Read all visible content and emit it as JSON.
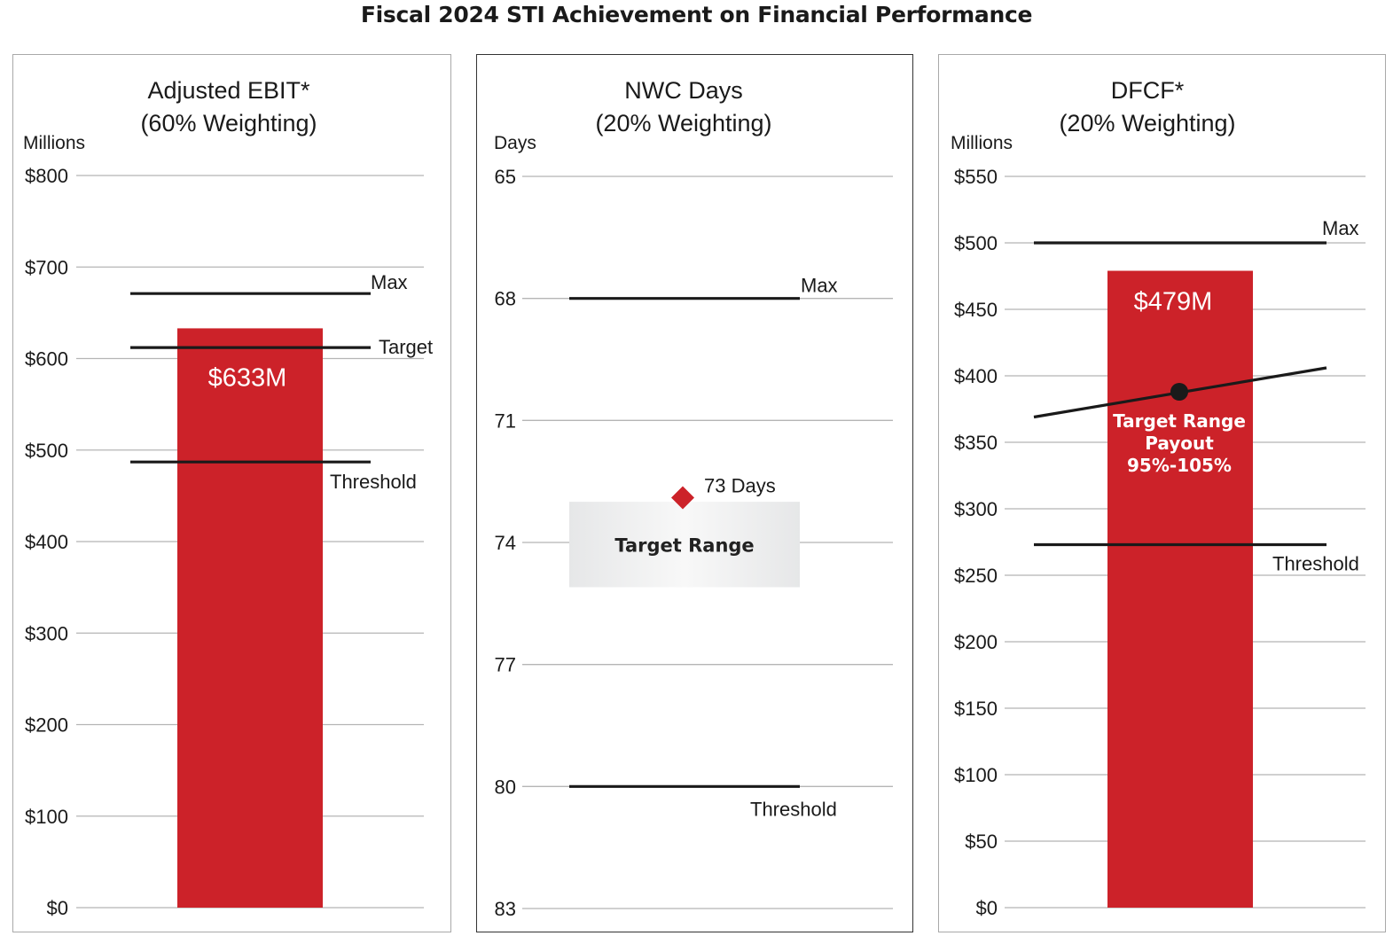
{
  "title": "Fiscal 2024 STI Achievement on Financial Performance",
  "colors": {
    "accent": "#cc2229",
    "gridline": "#b5b5b5",
    "reference_line": "#1a1a1a",
    "text": "#1a1a1a",
    "target_range_fill": "#e6e7e8"
  },
  "chart_data": [
    {
      "type": "bar",
      "title": "Adjusted EBIT*",
      "subtitle": "(60% Weighting)",
      "ylabel": "Millions",
      "ylim": [
        0,
        800
      ],
      "y_ticks": [
        "$0",
        "$100",
        "$200",
        "$300",
        "$400",
        "$500",
        "$600",
        "$700",
        "$800"
      ],
      "values": [
        633
      ],
      "bar_label": "$633M",
      "reference_lines": [
        {
          "label": "Max",
          "value": 671
        },
        {
          "label": "Target",
          "value": 612
        },
        {
          "label": "Threshold",
          "value": 487
        }
      ]
    },
    {
      "type": "scatter",
      "title": "NWC Days",
      "subtitle": "(20% Weighting)",
      "ylabel": "Days",
      "ylim": [
        65,
        83
      ],
      "y_inverted": true,
      "y_ticks": [
        "65",
        "68",
        "71",
        "74",
        "77",
        "80",
        "83"
      ],
      "point": {
        "value": 72.9,
        "label": "73 Days"
      },
      "target_range": {
        "label": "Target Range",
        "from": 73,
        "to": 75.1
      },
      "reference_lines": [
        {
          "label": "Max",
          "value": 68
        },
        {
          "label": "Threshold",
          "value": 80
        }
      ]
    },
    {
      "type": "bar",
      "title": "DFCF*",
      "subtitle": "(20% Weighting)",
      "ylabel": "Millions",
      "ylim": [
        0,
        550
      ],
      "y_ticks": [
        "$0",
        "$50",
        "$100",
        "$150",
        "$200",
        "$250",
        "$300",
        "$350",
        "$400",
        "$450",
        "$500",
        "$550"
      ],
      "values": [
        479
      ],
      "bar_label": "$479M",
      "reference_lines": [
        {
          "label": "Max",
          "value": 500
        },
        {
          "label": "Threshold",
          "value": 273
        }
      ],
      "target_range_payout": {
        "label_lines": [
          "Target Range",
          "Payout",
          "95%-105%"
        ],
        "line_from": 369,
        "line_to": 406,
        "marker": 388
      }
    }
  ]
}
